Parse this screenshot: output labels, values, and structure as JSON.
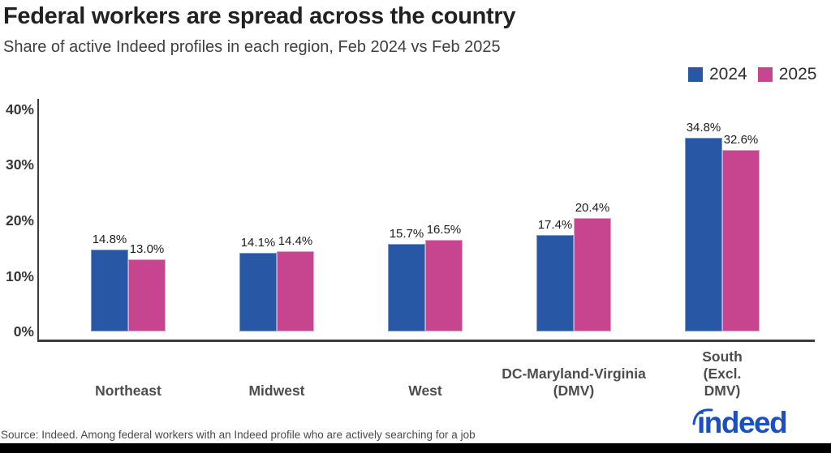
{
  "header": {
    "title": "Federal workers are spread across the country",
    "subtitle": "Share of active Indeed profiles in each region, Feb 2024 vs Feb 2025"
  },
  "legend": {
    "items": [
      {
        "label": "2024",
        "color": "#2857A6"
      },
      {
        "label": "2025",
        "color": "#C7458F"
      }
    ]
  },
  "chart_data": {
    "type": "bar",
    "title": "Federal workers are spread across the country",
    "subtitle": "Share of active Indeed profiles in each region, Feb 2024 vs Feb 2025",
    "categories": [
      "Northeast",
      "Midwest",
      "West",
      "DC-Maryland-Virginia (DMV)",
      "South (Excl. DMV)"
    ],
    "category_label_lines": [
      [
        "Northeast"
      ],
      [
        "Midwest"
      ],
      [
        "West"
      ],
      [
        "DC-Maryland-Virginia",
        "(DMV)"
      ],
      [
        "South",
        "(Excl.",
        "DMV)"
      ]
    ],
    "series": [
      {
        "name": "2024",
        "color": "#2857A6",
        "values": [
          14.8,
          14.1,
          15.7,
          17.4,
          34.8
        ]
      },
      {
        "name": "2025",
        "color": "#C7458F",
        "values": [
          13.0,
          14.4,
          16.5,
          20.4,
          32.6
        ]
      }
    ],
    "value_label_suffix": "%",
    "yticks": [
      {
        "value": 0,
        "label": "0%"
      },
      {
        "value": 10,
        "label": "10%"
      },
      {
        "value": 20,
        "label": "20%"
      },
      {
        "value": 30,
        "label": "30%"
      },
      {
        "value": 40,
        "label": "40%"
      }
    ],
    "ylim": [
      0,
      40
    ],
    "grid": false,
    "legend_position": "top-right"
  },
  "footer": {
    "source": "Source: Indeed. Among federal workers with an Indeed profile who are actively searching for a job",
    "logo_text": "indeed",
    "logo_color": "#1d4fc0"
  }
}
